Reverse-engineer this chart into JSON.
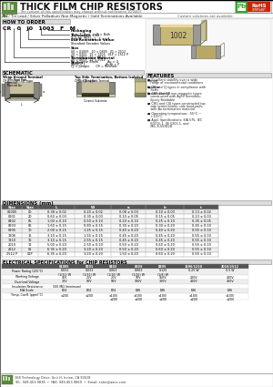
{
  "title": "THICK FILM CHIP RESISTORS",
  "subtitle": "The content of this specification may change without notification 10/04/07",
  "subtitle2": "Tin / Tin Lead / Silver Palladium Non-Magnetic / Gold Terminations Available",
  "subtitle3": "Custom solutions are available.",
  "how_to_order_title": "HOW TO ORDER",
  "features_title": "FEATURES",
  "features": [
    "Excellent stability over a wide range of environmental conditions",
    "CR and CJ types in compliance with RoHs",
    "CRP and CJP non-magnetic types constructed with AgPd Terminals, Epoxy Bondable",
    "CRG and CJG types constructed top side terminations, side bond pads, with Au termination material",
    "Operating temperature: -55°C ~ +125°C",
    "Appl. Specifications: EIA 575, IEC 60115-1, JIS 5201-1, and MIL-R-55342D"
  ],
  "schematic_title": "SCHEMATIC",
  "dimensions_title": "DIMENSIONS (mm)",
  "dim_rows": [
    [
      "01005",
      "00",
      "0.38 ± 0.02",
      "0.20 ± 0.02",
      "0.08 ± 0.03",
      "0.10 ± 0.03",
      "0.13 ± 0.02"
    ],
    [
      "0201",
      "20",
      "0.60 ± 0.03",
      "0.30 ± 0.03",
      "0.10 ± 0.05",
      "0.15 ± 0.05",
      "0.23 ± 0.03"
    ],
    [
      "0402",
      "05",
      "1.00 ± 0.10",
      "0.50 ± 0.10",
      "0.20 ± 0.10",
      "0.25 ± 0.10",
      "0.35 ± 0.05"
    ],
    [
      "0603",
      "06",
      "1.60 ± 0.15",
      "0.80 ± 0.15",
      "0.30 ± 0.20",
      "0.30 ± 0.20",
      "0.45 ± 0.10"
    ],
    [
      "0805",
      "10",
      "2.00 ± 0.15",
      "1.25 ± 0.15",
      "0.40 ± 0.20",
      "0.40 ± 0.20",
      "0.55 ± 0.10"
    ],
    [
      "1206",
      "15",
      "3.10 ± 0.15",
      "1.55 ± 0.15",
      "0.45 ± 0.20",
      "0.45 ± 0.20",
      "0.55 ± 0.10"
    ],
    [
      "1210",
      "16",
      "3.10 ± 0.15",
      "2.55 ± 0.15",
      "0.45 ± 0.20",
      "0.45 ± 0.20",
      "0.55 ± 0.10"
    ],
    [
      "2010",
      "12",
      "5.00 ± 0.20",
      "2.50 ± 0.20",
      "0.50 ± 0.20",
      "0.60 ± 0.20",
      "0.55 ± 0.10"
    ],
    [
      "2512",
      "01",
      "6.35 ± 0.20",
      "3.20 ± 0.20",
      "0.50 ± 0.20",
      "0.60 ± 0.20",
      "0.55 ± 0.10"
    ],
    [
      "2512 P",
      "01P",
      "6.35 ± 0.20",
      "3.20 ± 0.20",
      "1.50 ± 0.20",
      "0.60 ± 0.20",
      "0.55 ± 0.10"
    ]
  ],
  "elec_title": "ELECTRICAL SPECIFICATIONS for CHIP RESISTORS",
  "elec_col_headers": [
    "",
    "01005",
    "0201",
    "0402",
    "0603",
    "0805",
    "1206/1210",
    "2010/2512"
  ],
  "elec_rows": [
    [
      "Power Rating (125°C)",
      "0.031\n(1/32) W",
      "0.031\n(1/32) W",
      "0.063\n(1/16) W",
      "0.063\n(1/16) W",
      "0.125\n(1/8) W",
      "0.25 W",
      "0.5 W"
    ],
    [
      "Working Voltage",
      "15V",
      "25V",
      "25V",
      "50V",
      "150V",
      "200V",
      "200V"
    ],
    [
      "Overload Voltage",
      "30V",
      "50V",
      "50V",
      "100V",
      "300V",
      "400V",
      "400V"
    ],
    [
      "Insulation Resistance",
      "500 MΩ (minimum)",
      "",
      "",
      "",
      "",
      "",
      ""
    ],
    [
      "EIA Scale",
      "E24",
      "E24",
      "E24",
      "E96",
      "E96",
      "E96",
      "E96"
    ],
    [
      "Temp. Coeff. (ppm/°C)",
      "±200",
      "±200",
      "±100/\n±200",
      "±100/\n±200",
      "±100/\n±200",
      "±100/\n±200",
      "±100/\n±200"
    ]
  ],
  "footer_line1": "168 Technology Drive, Unit H, Irvine, CA 92618",
  "footer_line2": "TEL: 949-453-9838  •  FAX: 949-453-9869  •  Email: sales@aacx.com"
}
